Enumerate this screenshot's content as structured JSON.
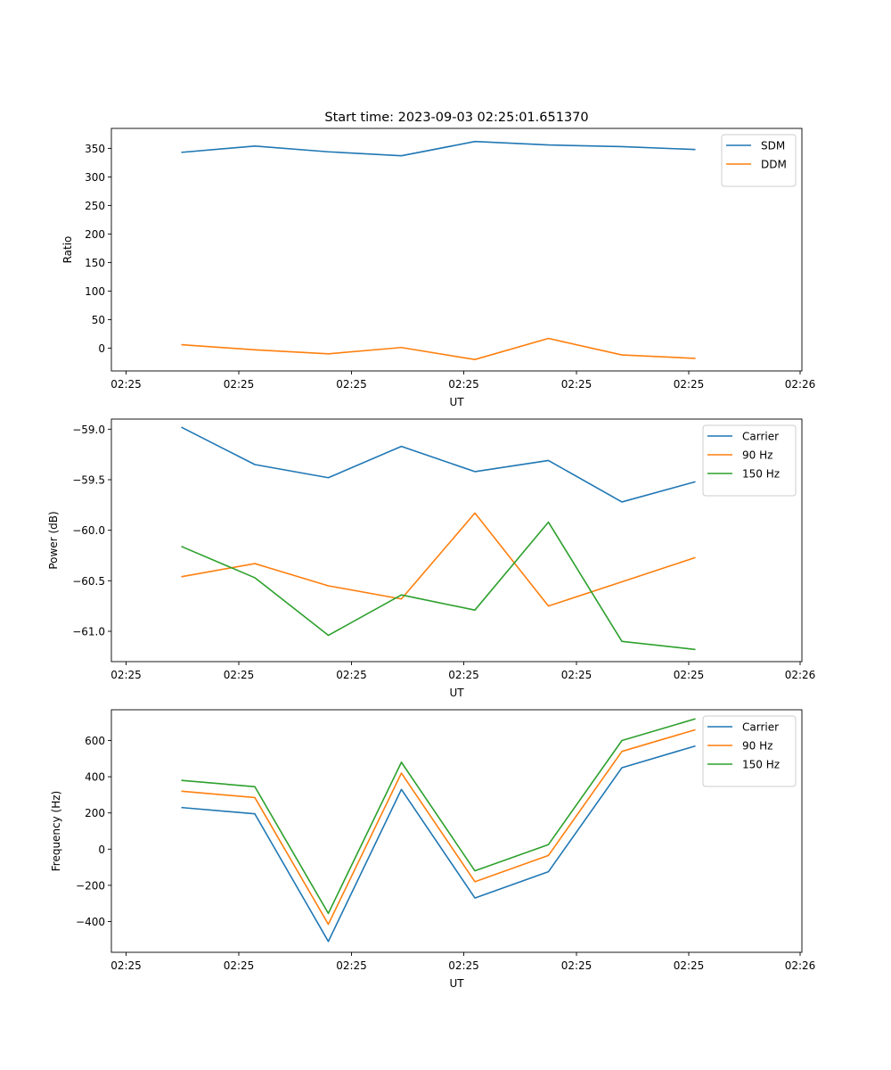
{
  "figure_title": "Start time: 2023-09-03 02:25:01.651370",
  "chart_data": [
    {
      "type": "line",
      "xlabel": "UT",
      "ylabel": "Ratio",
      "xticks": [
        "02:25",
        "02:25",
        "02:25",
        "02:25",
        "02:25",
        "02:25",
        "02:26"
      ],
      "yticks": [
        0,
        50,
        100,
        150,
        200,
        250,
        300,
        350
      ],
      "ylim": [
        -40,
        385
      ],
      "legend_position": "top-right",
      "series": [
        {
          "name": "SDM",
          "color": "#1f77b4",
          "values": [
            343,
            354,
            344,
            337,
            362,
            356,
            353,
            348
          ]
        },
        {
          "name": "DDM",
          "color": "#ff7f0e",
          "values": [
            6,
            -3,
            -10,
            1,
            -20,
            17,
            -12,
            -18
          ]
        }
      ]
    },
    {
      "type": "line",
      "xlabel": "UT",
      "ylabel": "Power (dB)",
      "xticks": [
        "02:25",
        "02:25",
        "02:25",
        "02:25",
        "02:25",
        "02:25",
        "02:26"
      ],
      "yticks": [
        -59.0,
        -59.5,
        -60.0,
        -60.5,
        -61.0
      ],
      "ytick_labels": [
        "−59.0",
        "−59.5",
        "−60.0",
        "−60.5",
        "−61.0"
      ],
      "ylim": [
        -61.3,
        -58.9
      ],
      "legend_position": "top-right",
      "series": [
        {
          "name": "Carrier",
          "color": "#1f77b4",
          "values": [
            -58.98,
            -59.35,
            -59.48,
            -59.17,
            -59.42,
            -59.31,
            -59.72,
            -59.52
          ]
        },
        {
          "name": "90 Hz",
          "color": "#ff7f0e",
          "values": [
            -60.46,
            -60.33,
            -60.55,
            -60.68,
            -59.83,
            -60.75,
            -60.51,
            -60.27
          ]
        },
        {
          "name": "150 Hz",
          "color": "#2ca02c",
          "values": [
            -60.16,
            -60.47,
            -61.04,
            -60.64,
            -60.79,
            -59.92,
            -61.1,
            -61.18
          ]
        }
      ]
    },
    {
      "type": "line",
      "xlabel": "UT",
      "ylabel": "Frequency (Hz)",
      "xticks": [
        "02:25",
        "02:25",
        "02:25",
        "02:25",
        "02:25",
        "02:25",
        "02:26"
      ],
      "yticks": [
        -400,
        -200,
        0,
        200,
        400,
        600
      ],
      "ytick_labels": [
        "−400",
        "−200",
        "0",
        "200",
        "400",
        "600"
      ],
      "ylim": [
        -570,
        770
      ],
      "legend_position": "top-right",
      "series": [
        {
          "name": "Carrier",
          "color": "#1f77b4",
          "values": [
            230,
            195,
            -510,
            330,
            -270,
            -125,
            450,
            570
          ]
        },
        {
          "name": "90 Hz",
          "color": "#ff7f0e",
          "values": [
            320,
            285,
            -415,
            420,
            -180,
            -35,
            540,
            660
          ]
        },
        {
          "name": "150 Hz",
          "color": "#2ca02c",
          "values": [
            380,
            345,
            -355,
            480,
            -120,
            25,
            600,
            720
          ]
        }
      ]
    }
  ]
}
